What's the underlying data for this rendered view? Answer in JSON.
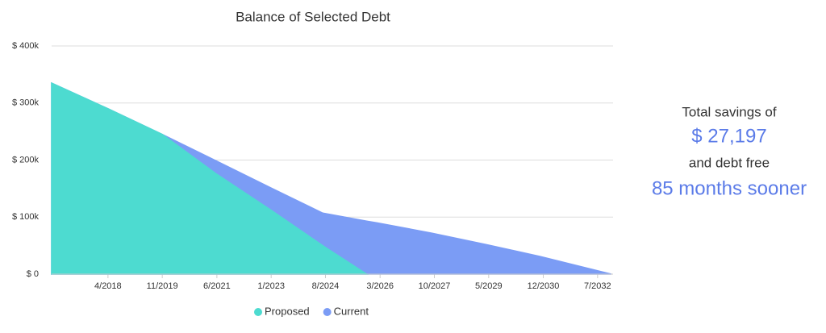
{
  "chart_data": {
    "type": "area",
    "title": "Balance of Selected Debt",
    "x": [
      2016.61,
      2018.25,
      2019.83,
      2021.42,
      2023.0,
      2024.5,
      2025.78,
      2026.08,
      2027.67,
      2029.25,
      2030.83,
      2032.9
    ],
    "series": [
      {
        "name": "Proposed",
        "color": "#4ddbd0",
        "values": [
          335000,
          290000,
          245000,
          175000,
          112000,
          50000,
          0,
          null,
          null,
          null,
          null,
          null
        ]
      },
      {
        "name": "Current",
        "color": "#7b9cf5",
        "values": [
          335000,
          290000,
          245000,
          198000,
          151000,
          107000,
          93000,
          90000,
          72000,
          52000,
          31000,
          0
        ]
      }
    ],
    "xlim": [
      2016.61,
      2032.95
    ],
    "xticks": [
      {
        "value": 2018.25,
        "label": "4/2018"
      },
      {
        "value": 2019.83,
        "label": "11/2019"
      },
      {
        "value": 2021.42,
        "label": "6/2021"
      },
      {
        "value": 2023.0,
        "label": "1/2023"
      },
      {
        "value": 2024.58,
        "label": "8/2024"
      },
      {
        "value": 2026.17,
        "label": "3/2026"
      },
      {
        "value": 2027.75,
        "label": "10/2027"
      },
      {
        "value": 2029.33,
        "label": "5/2029"
      },
      {
        "value": 2030.92,
        "label": "12/2030"
      },
      {
        "value": 2032.5,
        "label": "7/2032"
      }
    ],
    "ylim": [
      0,
      400000
    ],
    "yticks": [
      {
        "value": 0,
        "label": "$ 0"
      },
      {
        "value": 100000,
        "label": "$ 100k"
      },
      {
        "value": 200000,
        "label": "$ 200k"
      },
      {
        "value": 300000,
        "label": "$ 300k"
      },
      {
        "value": 400000,
        "label": "$ 400k"
      }
    ],
    "grid": true
  },
  "summary": {
    "line1": "Total savings of",
    "amount": "$ 27,197",
    "line2": "and debt free",
    "months": "85 months sooner"
  }
}
